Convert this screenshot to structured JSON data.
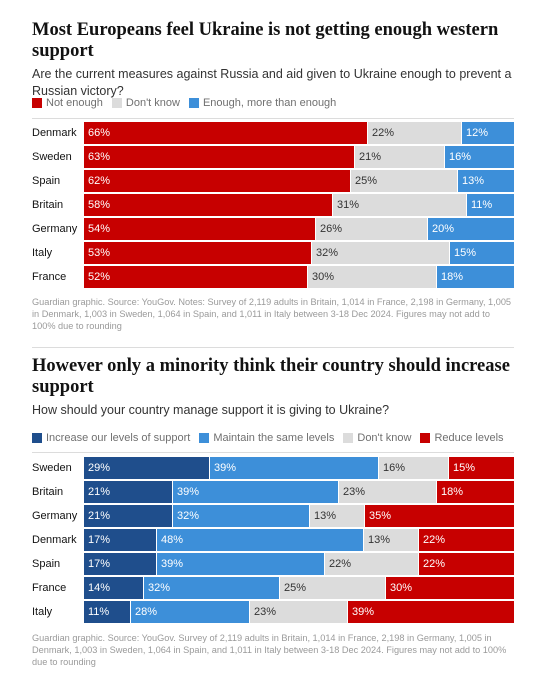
{
  "chart_data": [
    {
      "type": "bar",
      "orientation": "horizontal",
      "stacked": true,
      "title": "Most Europeans feel Ukraine is not getting enough western support",
      "subtitle": "Are the current measures against Russia and aid given to Ukraine enough to prevent a Russian victory?",
      "legend_placement": "top-left",
      "categories": [
        "Denmark",
        "Sweden",
        "Spain",
        "Britain",
        "Germany",
        "Italy",
        "France"
      ],
      "series": [
        {
          "name": "Not enough",
          "color": "#c70000",
          "text_color": "#ffffff",
          "values": [
            66,
            63,
            62,
            58,
            54,
            53,
            52
          ]
        },
        {
          "name": "Don't know",
          "color": "#dcdcdc",
          "text_color": "#333333",
          "values": [
            22,
            21,
            25,
            31,
            26,
            32,
            30
          ]
        },
        {
          "name": "Enough, more than enough",
          "color": "#3d8fd9",
          "text_color": "#ffffff",
          "values": [
            12,
            16,
            13,
            11,
            20,
            15,
            18
          ]
        }
      ],
      "value_suffix": "%",
      "note": "Guardian graphic. Source: YouGov. Notes: Survey of 2,119 adults in Britain, 1,014 in France, 2,198 in Germany, 1,005 in Denmark, 1,003 in Sweden, 1,064 in Spain, and 1,011 in Italy between 3-18 Dec 2024. Figures may not add to 100% due to rounding"
    },
    {
      "type": "bar",
      "orientation": "horizontal",
      "stacked": true,
      "title": "However only a minority think their country should increase support",
      "subtitle": "How should your country manage support it is giving to Ukraine?",
      "legend_placement": "top-left",
      "categories": [
        "Sweden",
        "Britain",
        "Germany",
        "Denmark",
        "Spain",
        "France",
        "Italy"
      ],
      "series": [
        {
          "name": "Increase our levels of support",
          "color": "#1f4e8c",
          "text_color": "#ffffff",
          "values": [
            29,
            21,
            21,
            17,
            17,
            14,
            11
          ]
        },
        {
          "name": "Maintain the same levels",
          "color": "#3d8fd9",
          "text_color": "#ffffff",
          "values": [
            39,
            39,
            32,
            48,
            39,
            32,
            28
          ]
        },
        {
          "name": "Don't know",
          "color": "#dcdcdc",
          "text_color": "#333333",
          "values": [
            16,
            23,
            13,
            13,
            22,
            25,
            23
          ]
        },
        {
          "name": "Reduce levels",
          "color": "#c70000",
          "text_color": "#ffffff",
          "values": [
            15,
            18,
            35,
            22,
            22,
            30,
            39
          ]
        }
      ],
      "value_suffix": "%",
      "note": "Guardian graphic. Source: YouGov. Survey of 2,119 adults in Britain, 1,014 in France, 2,198 in Germany, 1,005 in Denmark, 1,003 in Sweden, 1,064 in Spain, and 1,011 in Italy between 3-18 Dec 2024. Figures may not add to 100% due to rounding"
    }
  ]
}
